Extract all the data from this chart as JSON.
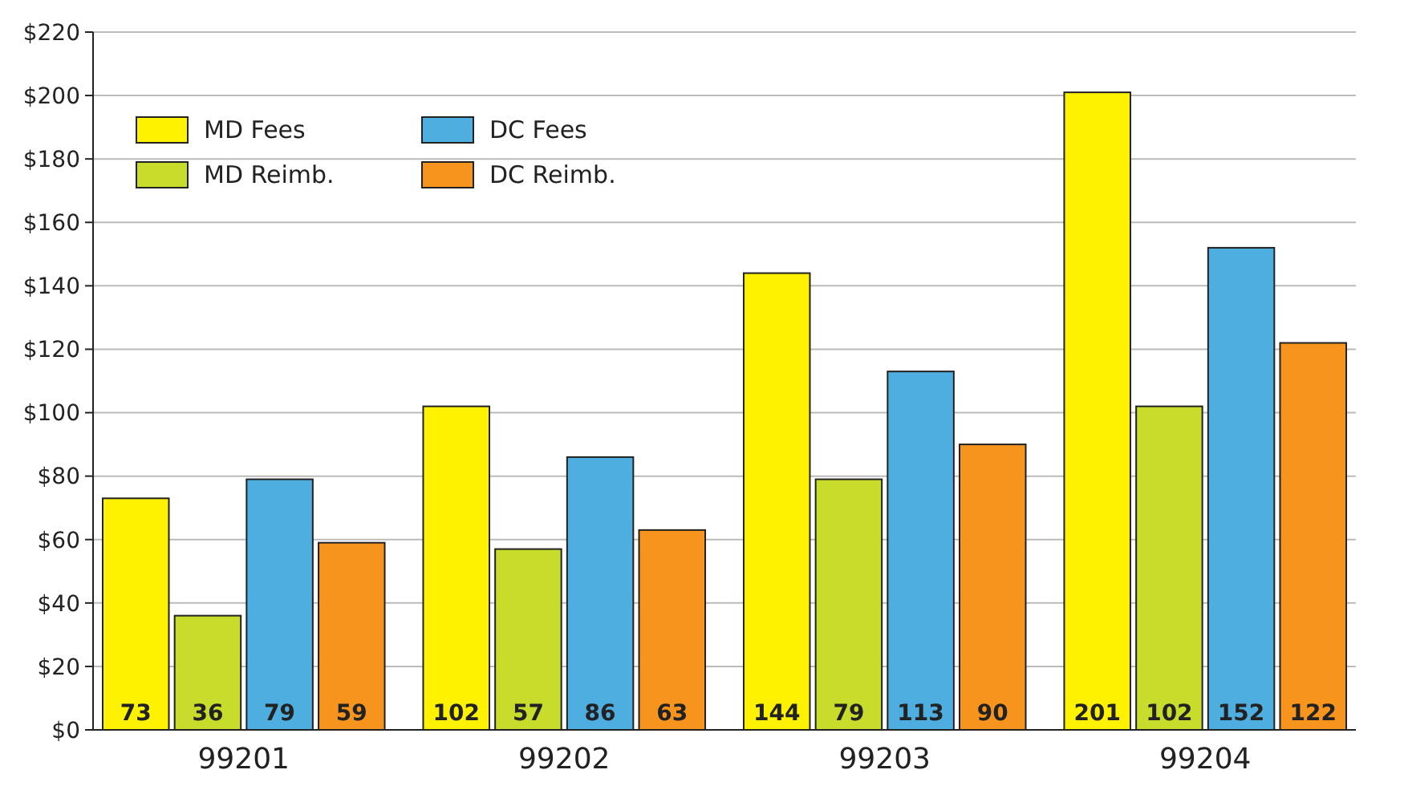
{
  "chart_data": {
    "type": "bar",
    "categories": [
      "99201",
      "99202",
      "99203",
      "99204"
    ],
    "series": [
      {
        "name": "MD Fees",
        "color": "#fff200",
        "values": [
          73,
          102,
          144,
          201
        ]
      },
      {
        "name": "MD Reimb.",
        "color": "#c8dc2b",
        "values": [
          36,
          57,
          79,
          102
        ]
      },
      {
        "name": "DC Fees",
        "color": "#4eaee0",
        "values": [
          79,
          86,
          113,
          152
        ]
      },
      {
        "name": "DC Reimb.",
        "color": "#f7941d",
        "values": [
          59,
          63,
          90,
          122
        ]
      }
    ],
    "ylim": [
      0,
      220
    ],
    "yticks": [
      {
        "value": 0,
        "label": "$0"
      },
      {
        "value": 20,
        "label": "$20"
      },
      {
        "value": 40,
        "label": "$40"
      },
      {
        "value": 60,
        "label": "$60"
      },
      {
        "value": 80,
        "label": "$80"
      },
      {
        "value": 100,
        "label": "$100"
      },
      {
        "value": 120,
        "label": "$120"
      },
      {
        "value": 140,
        "label": "$140"
      },
      {
        "value": 160,
        "label": "$160"
      },
      {
        "value": 180,
        "label": "$180"
      },
      {
        "value": 200,
        "label": "$200"
      },
      {
        "value": 220,
        "label": "$220"
      }
    ],
    "grid": "y",
    "legend": "top left",
    "data_labels": true
  }
}
